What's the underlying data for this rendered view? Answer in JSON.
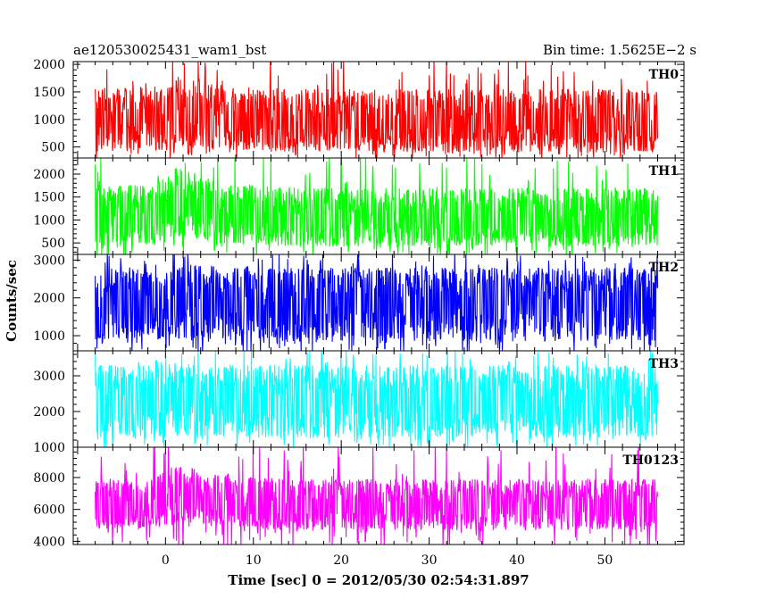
{
  "header": {
    "left_title": "ae120530025431_wam1_bst",
    "right_title": "Bin time: 1.5625E−2 s"
  },
  "chart_data": {
    "type": "line",
    "xlabel": "Time [sec] 0 = 2012/05/30 02:54:31.897",
    "ylabel": "Counts/sec",
    "xlim": [
      -10.5,
      59
    ],
    "x_ticks": [
      0,
      10,
      20,
      30,
      40,
      50
    ],
    "data_x_range": [
      -8,
      56
    ],
    "bin_time_s": 0.015625,
    "panels": [
      {
        "label": "TH0",
        "color": "#ff0000",
        "ylim": [
          300,
          2050
        ],
        "y_ticks": [
          500,
          1000,
          1500,
          2000
        ],
        "typical_range": [
          400,
          1500
        ],
        "envelope": [
          {
            "x": -8,
            "low": 420,
            "mid": 950,
            "high": 1550
          },
          {
            "x": -2,
            "low": 420,
            "mid": 960,
            "high": 1600
          },
          {
            "x": 2,
            "low": 480,
            "mid": 1100,
            "high": 1800
          },
          {
            "x": 6,
            "low": 430,
            "mid": 980,
            "high": 1600
          },
          {
            "x": 15,
            "low": 400,
            "mid": 930,
            "high": 1550
          },
          {
            "x": 30,
            "low": 400,
            "mid": 920,
            "high": 1550
          },
          {
            "x": 45,
            "low": 400,
            "mid": 920,
            "high": 1550
          },
          {
            "x": 56,
            "low": 400,
            "mid": 910,
            "high": 1550
          }
        ]
      },
      {
        "label": "TH1",
        "color": "#00ff00",
        "ylim": [
          250,
          2350
        ],
        "y_ticks": [
          500,
          1000,
          1500,
          2000
        ],
        "typical_range": [
          400,
          1800
        ],
        "envelope": [
          {
            "x": -8,
            "low": 420,
            "mid": 1000,
            "high": 1700
          },
          {
            "x": -2,
            "low": 450,
            "mid": 1050,
            "high": 1800
          },
          {
            "x": 2,
            "low": 650,
            "mid": 1350,
            "high": 2100
          },
          {
            "x": 6,
            "low": 480,
            "mid": 1100,
            "high": 1850
          },
          {
            "x": 15,
            "low": 420,
            "mid": 1000,
            "high": 1700
          },
          {
            "x": 30,
            "low": 420,
            "mid": 990,
            "high": 1700
          },
          {
            "x": 45,
            "low": 420,
            "mid": 990,
            "high": 1700
          },
          {
            "x": 56,
            "low": 420,
            "mid": 980,
            "high": 1700
          }
        ]
      },
      {
        "label": "TH2",
        "color": "#0000ff",
        "ylim": [
          600,
          3150
        ],
        "y_ticks": [
          1000,
          2000,
          3000
        ],
        "typical_range": [
          800,
          2900
        ],
        "envelope": [
          {
            "x": -8,
            "low": 850,
            "mid": 1900,
            "high": 2800
          },
          {
            "x": 2,
            "low": 900,
            "mid": 1950,
            "high": 2850
          },
          {
            "x": 15,
            "low": 850,
            "mid": 1900,
            "high": 2800
          },
          {
            "x": 30,
            "low": 850,
            "mid": 1880,
            "high": 2800
          },
          {
            "x": 45,
            "low": 850,
            "mid": 1880,
            "high": 2800
          },
          {
            "x": 56,
            "low": 850,
            "mid": 1880,
            "high": 2800
          }
        ]
      },
      {
        "label": "TH3",
        "color": "#00ffff",
        "ylim": [
          1000,
          3700
        ],
        "y_ticks": [
          1000,
          2000,
          3000
        ],
        "typical_range": [
          1200,
          3400
        ],
        "envelope": [
          {
            "x": -8,
            "low": 1250,
            "mid": 2300,
            "high": 3300
          },
          {
            "x": 2,
            "low": 1300,
            "mid": 2350,
            "high": 3350
          },
          {
            "x": 15,
            "low": 1250,
            "mid": 2300,
            "high": 3300
          },
          {
            "x": 30,
            "low": 1250,
            "mid": 2300,
            "high": 3300
          },
          {
            "x": 45,
            "low": 1250,
            "mid": 2300,
            "high": 3300
          },
          {
            "x": 56,
            "low": 1250,
            "mid": 2300,
            "high": 3300
          }
        ]
      },
      {
        "label": "TH0123",
        "color": "#ff00ff",
        "ylim": [
          3800,
          9900
        ],
        "y_ticks": [
          4000,
          6000,
          8000
        ],
        "typical_range": [
          4500,
          8500
        ],
        "envelope": [
          {
            "x": -8,
            "low": 4700,
            "mid": 6200,
            "high": 7900
          },
          {
            "x": -2,
            "low": 4800,
            "mid": 6300,
            "high": 8100
          },
          {
            "x": 2,
            "low": 5200,
            "mid": 6800,
            "high": 8700
          },
          {
            "x": 6,
            "low": 4900,
            "mid": 6400,
            "high": 8200
          },
          {
            "x": 15,
            "low": 4700,
            "mid": 6200,
            "high": 7900
          },
          {
            "x": 30,
            "low": 4700,
            "mid": 6150,
            "high": 7900
          },
          {
            "x": 45,
            "low": 4700,
            "mid": 6150,
            "high": 7900
          },
          {
            "x": 56,
            "low": 4700,
            "mid": 6100,
            "high": 7900
          }
        ]
      }
    ]
  }
}
